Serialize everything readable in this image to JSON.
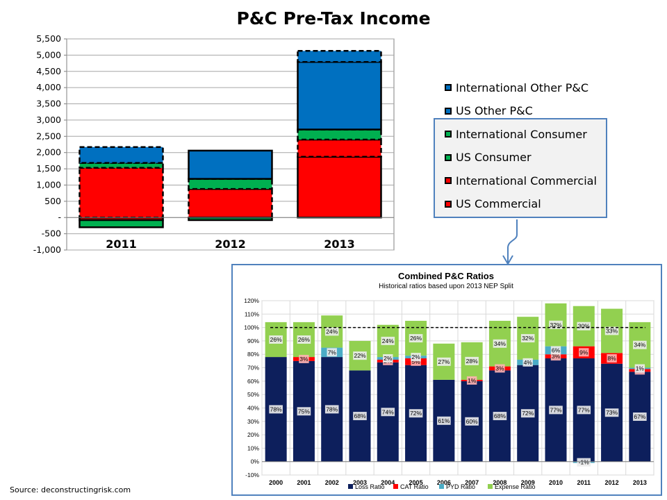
{
  "source": "Source: deconstructingrisk.com",
  "chart_data": [
    {
      "type": "bar",
      "stacked": true,
      "title": "P&C Pre-Tax Income",
      "categories": [
        "2011",
        "2012",
        "2013"
      ],
      "ylim": [
        -1000,
        5500
      ],
      "yticks": [
        "5,500",
        "5,000",
        "4,500",
        "4,000",
        "3,500",
        "3,000",
        "2,500",
        "2,000",
        "1,500",
        "1,000",
        "500",
        "-",
        "-500",
        "-1,000"
      ],
      "series": [
        {
          "name": "US Commercial",
          "color": "#ff0000",
          "dashed": false,
          "values": [
            -80,
            0,
            1870
          ]
        },
        {
          "name": "International Commercial",
          "color": "#ff0000",
          "dashed": true,
          "values": [
            1530,
            880,
            530
          ]
        },
        {
          "name": "US Consumer",
          "color": "#00b050",
          "dashed": false,
          "values": [
            -220,
            -80,
            0
          ]
        },
        {
          "name": "International Consumer",
          "color": "#00b050",
          "dashed": true,
          "values": [
            150,
            310,
            310
          ]
        },
        {
          "name": "US Other P&C",
          "color": "#0070c0",
          "dashed": false,
          "values": [
            0,
            870,
            2080
          ]
        },
        {
          "name": "International Other P&C",
          "color": "#0070c0",
          "dashed": true,
          "values": [
            490,
            0,
            340
          ]
        }
      ],
      "legend": [
        "International Other P&C",
        "US Other P&C",
        "International Consumer",
        "US Consumer",
        "International Commercial",
        "US Commercial"
      ]
    },
    {
      "type": "bar",
      "stacked": true,
      "title": "Combined P&C Ratios",
      "subtitle": "Historical ratios based upon 2013 NEP Split",
      "categories": [
        "2000",
        "2001",
        "2002",
        "2003",
        "2004",
        "2005",
        "2006",
        "2007",
        "2008",
        "2009",
        "2010",
        "2011",
        "2012",
        "2013"
      ],
      "ylim": [
        -10,
        120
      ],
      "yticks": [
        "120%",
        "110%",
        "100%",
        "90%",
        "80%",
        "70%",
        "60%",
        "50%",
        "40%",
        "30%",
        "20%",
        "10%",
        "0%",
        "-10%"
      ],
      "reference_line": 100,
      "series": [
        {
          "name": "Loss Ratio",
          "color": "#0d1f5c",
          "values": [
            78,
            75,
            78,
            68,
            74,
            72,
            61,
            60,
            68,
            72,
            77,
            77,
            73,
            67
          ],
          "labels": [
            "78%",
            "75%",
            "78%",
            "68%",
            "74%",
            "72%",
            "61%",
            "60%",
            "68%",
            "72%",
            "77%",
            "77%",
            "73%",
            "67%"
          ]
        },
        {
          "name": "CAT Ratio",
          "color": "#ff0000",
          "values": [
            0,
            3,
            0,
            0,
            2,
            5,
            0,
            1,
            3,
            0,
            3,
            9,
            8,
            2
          ],
          "labels": [
            "",
            "3%",
            "",
            "",
            "2%",
            "5%",
            "",
            "1%",
            "3%",
            "",
            "3%",
            "9%",
            "8%",
            "2%"
          ]
        },
        {
          "name": "PYD Ratio",
          "color": "#4bacc6",
          "values": [
            0,
            0,
            7,
            0,
            2,
            2,
            0,
            0,
            0,
            4,
            6,
            -1,
            0,
            1
          ],
          "labels": [
            "",
            "",
            "7%",
            "",
            "2%",
            "2%",
            "",
            "",
            "",
            "4%",
            "6%",
            "-1%",
            "",
            "1%"
          ]
        },
        {
          "name": "Expense Ratio",
          "color": "#92d050",
          "values": [
            26,
            26,
            24,
            22,
            24,
            26,
            27,
            28,
            34,
            32,
            32,
            30,
            33,
            34
          ],
          "labels": [
            "26%",
            "26%",
            "24%",
            "22%",
            "24%",
            "26%",
            "27%",
            "28%",
            "34%",
            "32%",
            "32%",
            "30%",
            "33%",
            "34%"
          ]
        }
      ],
      "legend": [
        "Loss Ratio",
        "CAT Ratio",
        "PYD Ratio",
        "Expense Ratio"
      ]
    }
  ]
}
